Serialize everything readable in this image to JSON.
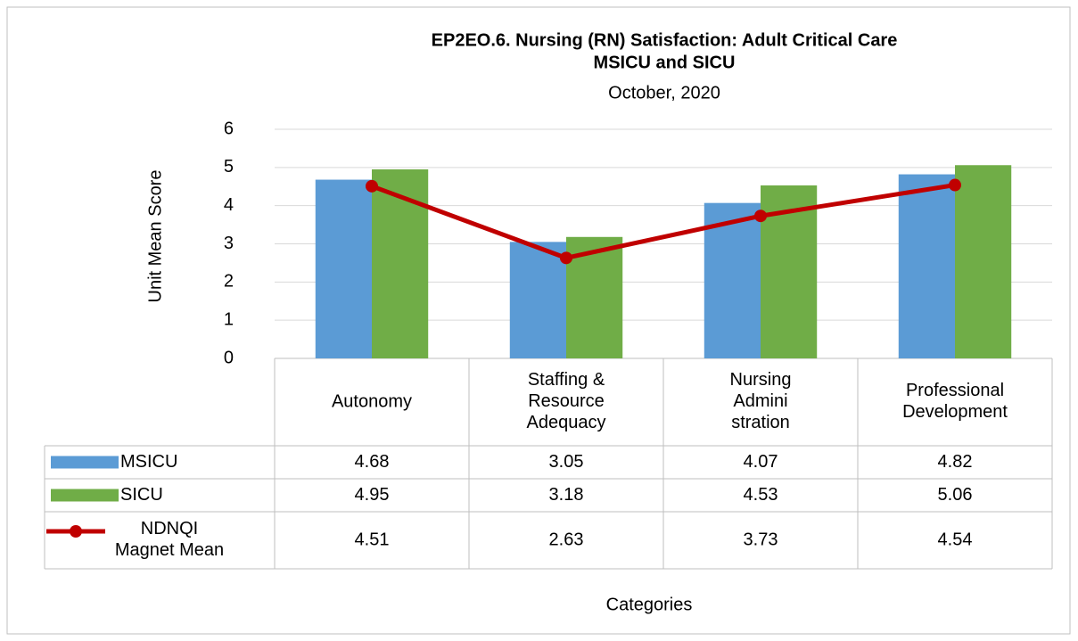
{
  "chart_data": {
    "type": "bar",
    "title": "EP2EO.6. Nursing (RN) Satisfaction: Adult Critical Care",
    "subtitle": "MSICU and SICU",
    "date": "October, 2020",
    "y_label": "Unit Mean Score",
    "x_label": "Categories",
    "categories": [
      "Autonomy",
      "Staffing &\nResource\nAdequacy",
      "Nursing\nAdmini\nstration",
      "Professional\nDevelopment"
    ],
    "series": [
      {
        "name": "MSICU",
        "type": "bar",
        "color": "#5b9bd5",
        "values": [
          4.68,
          3.05,
          4.07,
          4.82
        ]
      },
      {
        "name": "SICU",
        "type": "bar",
        "color": "#70ad47",
        "values": [
          4.95,
          3.18,
          4.53,
          5.06
        ]
      },
      {
        "name": "NDNQI\nMagnet Mean",
        "type": "line",
        "color": "#c00000",
        "values": [
          4.51,
          2.63,
          3.73,
          4.54
        ]
      }
    ],
    "ylim": [
      0,
      6
    ],
    "yticks": [
      0,
      1,
      2,
      3,
      4,
      5,
      6
    ],
    "grid": true
  }
}
